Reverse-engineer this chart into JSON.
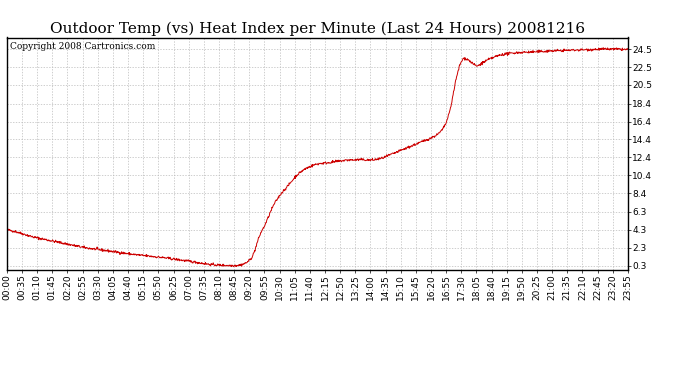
{
  "title": "Outdoor Temp (vs) Heat Index per Minute (Last 24 Hours) 20081216",
  "copyright_text": "Copyright 2008 Cartronics.com",
  "line_color": "#cc0000",
  "background_color": "#ffffff",
  "grid_color": "#bbbbbb",
  "yticks": [
    0.3,
    2.3,
    4.3,
    6.3,
    8.4,
    10.4,
    12.4,
    14.4,
    16.4,
    18.4,
    20.5,
    22.5,
    24.5
  ],
  "ymin": -0.2,
  "ymax": 25.8,
  "xtick_labels": [
    "00:00",
    "00:35",
    "01:10",
    "01:45",
    "02:20",
    "02:55",
    "03:30",
    "04:05",
    "04:40",
    "05:15",
    "05:50",
    "06:25",
    "07:00",
    "07:35",
    "08:10",
    "08:45",
    "09:20",
    "09:55",
    "10:30",
    "11:05",
    "11:40",
    "12:15",
    "12:50",
    "13:25",
    "14:00",
    "14:35",
    "15:10",
    "15:45",
    "16:20",
    "16:55",
    "17:30",
    "18:05",
    "18:40",
    "19:15",
    "19:50",
    "20:25",
    "21:00",
    "21:35",
    "22:10",
    "22:45",
    "23:20",
    "23:55"
  ],
  "n_points": 1440,
  "title_fontsize": 11,
  "axis_fontsize": 6.5,
  "copyright_fontsize": 6.5
}
